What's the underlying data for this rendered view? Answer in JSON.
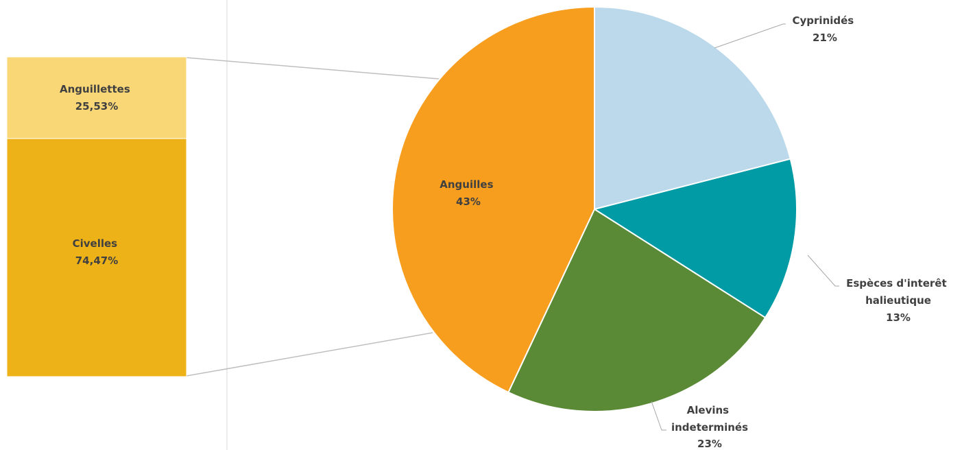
{
  "chart_data": {
    "type": "pie",
    "slices": [
      {
        "name": "Cyprinidés",
        "label": "21%",
        "value": 21,
        "color": "#BBD9EA"
      },
      {
        "name": "Espèces d'interêt halieutique",
        "label": "13%",
        "value": 13,
        "color": "#009BA5"
      },
      {
        "name": "Alevins indeterminés",
        "label": "23%",
        "value": 23,
        "color": "#5A8A36"
      },
      {
        "name": "Anguilles",
        "label": "43%",
        "value": 43,
        "color": "#F79E1E"
      }
    ],
    "breakdown": {
      "of": "Anguilles",
      "type": "stacked-bar",
      "segments": [
        {
          "name": "Anguillettes",
          "label": "25,53%",
          "value": 25.53,
          "color": "#F9D676"
        },
        {
          "name": "Civelles",
          "label": "74,47%",
          "value": 74.47,
          "color": "#EDB218"
        }
      ]
    }
  }
}
